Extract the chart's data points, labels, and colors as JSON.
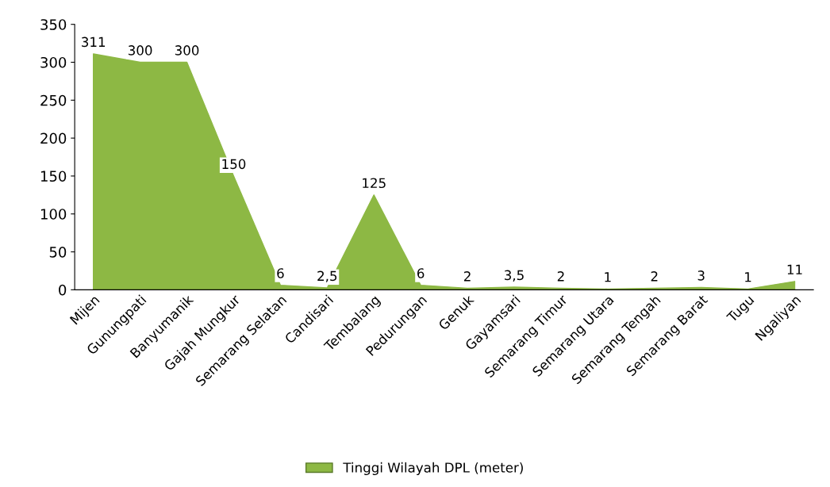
{
  "chart_data": {
    "type": "area",
    "categories": [
      "Mijen",
      "Gunungpati",
      "Banyumanik",
      "Gajah Mungkur",
      "Semarang Selatan",
      "Candisari",
      "Tembalang",
      "Pedurungan",
      "Genuk",
      "Gayamsari",
      "Semarang Timur",
      "Semarang Utara",
      "Semarang Tengah",
      "Semarang Barat",
      "Tugu",
      "Ngaliyan"
    ],
    "series": [
      {
        "name": "Tinggi Wilayah DPL (meter)",
        "color": "#8db844",
        "values": [
          311,
          300,
          300,
          150,
          6,
          2.5,
          125,
          6,
          2,
          3.5,
          2,
          1,
          2,
          3,
          1,
          11
        ],
        "value_labels": [
          "311",
          "300",
          "300",
          "150",
          "6",
          "2,5",
          "125",
          "6",
          "2",
          "3,5",
          "2",
          "1",
          "2",
          "3",
          "1",
          "11"
        ]
      }
    ],
    "ylim": [
      0,
      350
    ],
    "yticks": [
      0,
      50,
      100,
      150,
      200,
      250,
      300,
      350
    ],
    "grid": false,
    "legend": "bottom"
  }
}
